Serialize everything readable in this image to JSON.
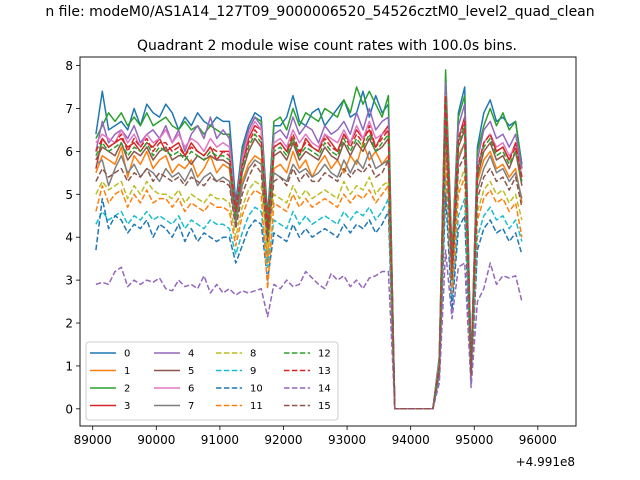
{
  "chart_data": {
    "type": "line",
    "suptitle": "n file: modeM0/AS1A14_127T09_9000006520_54526cztM0_level2_quad_clean",
    "title": "Quadrant 2 module wise count rates with 100.0s bins.",
    "xlabel": "",
    "ylabel": "",
    "x_offset_label": "+4.991e8",
    "xlim": [
      88800,
      96600
    ],
    "ylim": [
      -0.4,
      8.2
    ],
    "xticks": [
      89000,
      90000,
      91000,
      92000,
      93000,
      94000,
      95000,
      96000
    ],
    "xtick_labels": [
      "89000",
      "90000",
      "91000",
      "92000",
      "93000",
      "94000",
      "95000",
      "96000"
    ],
    "yticks": [
      0,
      1,
      2,
      3,
      4,
      5,
      6,
      7,
      8
    ],
    "ytick_labels": [
      "0",
      "1",
      "2",
      "3",
      "4",
      "5",
      "6",
      "7",
      "8"
    ],
    "x_start": 89050,
    "x_step": 100,
    "legend_position": "lower-left",
    "series": [
      {
        "name": "0",
        "color": "#1f77b4",
        "dash": "solid",
        "values": [
          6.4,
          7.4,
          6.5,
          6.6,
          6.7,
          6.5,
          7.0,
          6.6,
          7.1,
          6.9,
          6.8,
          7.1,
          6.9,
          6.5,
          6.8,
          6.6,
          6.9,
          6.7,
          6.6,
          6.8,
          6.7,
          6.7,
          4.8,
          6.1,
          6.6,
          6.9,
          6.8,
          4.5,
          6.6,
          6.6,
          6.8,
          7.3,
          6.7,
          6.6,
          6.9,
          7.0,
          6.6,
          6.8,
          7.0,
          7.2,
          6.8,
          6.9,
          7.4,
          6.8,
          7.3,
          6.9,
          7.1,
          0.0,
          0.0,
          0.0,
          0.0,
          0.0,
          0.0,
          0.0,
          1.2,
          7.7,
          3.5,
          6.9,
          7.5,
          1.0,
          6.1,
          6.9,
          7.2,
          6.7,
          6.8,
          6.6,
          6.7,
          5.7
        ]
      },
      {
        "name": "1",
        "color": "#ff7f0e",
        "dash": "solid",
        "values": [
          5.5,
          5.9,
          5.8,
          5.7,
          6.1,
          5.4,
          5.9,
          5.7,
          6.0,
          5.6,
          5.8,
          5.9,
          5.5,
          5.7,
          5.6,
          5.8,
          5.4,
          5.6,
          5.9,
          5.5,
          5.7,
          5.6,
          4.4,
          5.3,
          5.7,
          5.9,
          5.8,
          3.4,
          5.6,
          5.7,
          5.5,
          6.0,
          5.6,
          5.8,
          5.4,
          5.7,
          5.9,
          5.6,
          5.8,
          5.5,
          5.9,
          5.7,
          6.2,
          5.8,
          6.0,
          5.7,
          5.9,
          0.0,
          0.0,
          0.0,
          0.0,
          0.0,
          0.0,
          0.0,
          1.0,
          6.5,
          3.0,
          5.9,
          6.2,
          0.8,
          5.3,
          5.8,
          6.0,
          5.6,
          5.7,
          5.4,
          5.6,
          4.8
        ]
      },
      {
        "name": "2",
        "color": "#2ca02c",
        "dash": "solid",
        "values": [
          6.3,
          6.6,
          6.9,
          6.7,
          6.9,
          6.6,
          6.8,
          6.6,
          6.9,
          6.6,
          6.7,
          6.8,
          6.6,
          6.5,
          6.7,
          6.5,
          6.6,
          6.4,
          6.6,
          6.5,
          6.4,
          6.4,
          4.6,
          6.0,
          6.5,
          6.8,
          6.7,
          4.4,
          6.7,
          6.8,
          6.5,
          7.0,
          6.6,
          6.9,
          6.8,
          6.7,
          7.0,
          6.9,
          6.8,
          7.2,
          6.9,
          7.5,
          7.1,
          7.4,
          7.1,
          6.8,
          7.3,
          0.0,
          0.0,
          0.0,
          0.0,
          0.0,
          0.0,
          0.0,
          1.2,
          7.9,
          3.6,
          6.8,
          7.3,
          1.0,
          6.0,
          6.6,
          7.0,
          6.6,
          6.9,
          6.5,
          6.7,
          5.6
        ]
      },
      {
        "name": "3",
        "color": "#d62728",
        "dash": "solid",
        "values": [
          5.6,
          6.3,
          6.1,
          6.2,
          6.3,
          6.1,
          6.2,
          6.0,
          6.2,
          6.1,
          6.3,
          6.0,
          6.1,
          6.2,
          5.9,
          6.2,
          6.0,
          5.9,
          6.1,
          5.8,
          6.0,
          6.0,
          4.7,
          5.7,
          6.3,
          6.6,
          6.5,
          4.3,
          6.1,
          6.2,
          6.0,
          6.3,
          5.9,
          6.3,
          6.1,
          6.0,
          6.4,
          6.2,
          6.0,
          6.4,
          6.2,
          6.5,
          6.3,
          6.5,
          6.1,
          6.4,
          6.6,
          0.0,
          0.0,
          0.0,
          0.0,
          0.0,
          0.0,
          0.0,
          1.0,
          7.4,
          3.3,
          6.3,
          6.8,
          0.9,
          5.6,
          6.2,
          6.4,
          6.0,
          6.1,
          5.8,
          6.2,
          5.4
        ]
      },
      {
        "name": "4",
        "color": "#9467bd",
        "dash": "solid",
        "values": [
          6.0,
          6.7,
          6.2,
          6.4,
          6.5,
          6.3,
          6.6,
          6.2,
          6.4,
          6.5,
          6.3,
          6.6,
          6.2,
          6.5,
          6.0,
          6.4,
          6.6,
          6.3,
          6.8,
          6.3,
          6.5,
          6.3,
          4.6,
          5.9,
          6.5,
          6.8,
          6.6,
          4.2,
          6.4,
          6.5,
          6.3,
          6.8,
          6.4,
          6.6,
          6.5,
          6.2,
          6.6,
          6.4,
          6.5,
          6.7,
          6.4,
          6.9,
          6.5,
          7.0,
          6.5,
          6.7,
          6.8,
          0.0,
          0.0,
          0.0,
          0.0,
          0.0,
          0.0,
          0.0,
          1.1,
          7.6,
          3.4,
          6.6,
          7.1,
          1.0,
          5.8,
          6.5,
          6.7,
          6.3,
          6.4,
          6.1,
          6.4,
          5.6
        ]
      },
      {
        "name": "5",
        "color": "#8c564b",
        "dash": "solid",
        "values": [
          5.8,
          6.1,
          6.0,
          5.9,
          6.2,
          5.8,
          6.0,
          5.9,
          6.1,
          5.8,
          6.0,
          6.1,
          5.8,
          5.9,
          5.9,
          5.7,
          5.9,
          5.8,
          5.9,
          5.8,
          5.8,
          5.7,
          4.4,
          5.5,
          6.0,
          6.3,
          6.1,
          4.0,
          5.9,
          6.0,
          5.8,
          6.2,
          5.8,
          6.0,
          5.9,
          5.8,
          6.1,
          5.9,
          5.8,
          6.2,
          5.9,
          6.2,
          6.0,
          6.3,
          6.0,
          6.1,
          6.3,
          0.0,
          0.0,
          0.0,
          0.0,
          0.0,
          0.0,
          0.0,
          1.0,
          7.1,
          3.2,
          6.1,
          6.5,
          0.9,
          5.4,
          6.0,
          6.2,
          5.8,
          5.9,
          5.6,
          6.0,
          5.2
        ]
      },
      {
        "name": "6",
        "color": "#e377c2",
        "dash": "solid",
        "values": [
          6.2,
          6.4,
          6.3,
          6.2,
          6.5,
          6.2,
          6.4,
          6.1,
          6.4,
          6.2,
          6.3,
          6.5,
          6.2,
          6.4,
          6.1,
          6.3,
          6.2,
          6.0,
          6.3,
          6.1,
          6.2,
          6.1,
          4.5,
          5.8,
          6.4,
          6.7,
          6.5,
          4.1,
          6.2,
          6.3,
          6.1,
          6.5,
          6.2,
          6.4,
          6.2,
          6.1,
          6.4,
          6.3,
          6.2,
          6.5,
          6.2,
          6.6,
          6.3,
          6.7,
          6.3,
          6.4,
          6.5,
          0.0,
          0.0,
          0.0,
          0.0,
          0.0,
          0.0,
          0.0,
          1.1,
          7.3,
          3.3,
          6.3,
          6.7,
          0.9,
          5.6,
          6.2,
          6.4,
          6.1,
          6.2,
          5.9,
          6.1,
          5.4
        ]
      },
      {
        "name": "7",
        "color": "#7f7f7f",
        "dash": "solid",
        "values": [
          5.7,
          5.8,
          5.2,
          5.6,
          5.9,
          5.5,
          5.7,
          5.4,
          5.6,
          5.5,
          5.3,
          5.6,
          5.4,
          5.5,
          5.3,
          5.6,
          5.2,
          5.4,
          5.5,
          5.3,
          5.4,
          5.3,
          4.3,
          5.2,
          5.6,
          5.8,
          5.7,
          4.3,
          5.5,
          5.4,
          5.3,
          5.7,
          5.5,
          5.6,
          5.4,
          5.5,
          5.7,
          5.5,
          5.4,
          5.8,
          5.5,
          5.8,
          5.6,
          6.0,
          5.6,
          5.7,
          5.8,
          0.0,
          0.0,
          0.0,
          0.0,
          0.0,
          0.0,
          0.0,
          1.0,
          6.8,
          3.1,
          5.8,
          6.2,
          0.8,
          5.1,
          5.6,
          5.9,
          5.5,
          5.6,
          5.3,
          5.5,
          4.9
        ]
      },
      {
        "name": "8",
        "color": "#bcbd22",
        "dash": "dashed",
        "values": [
          5.0,
          5.3,
          5.1,
          5.2,
          5.3,
          4.9,
          5.2,
          5.0,
          5.3,
          5.1,
          5.0,
          5.0,
          4.9,
          5.1,
          4.8,
          5.0,
          4.9,
          4.8,
          5.0,
          4.9,
          4.9,
          4.8,
          4.0,
          4.7,
          5.1,
          5.3,
          5.2,
          3.7,
          5.0,
          4.9,
          4.8,
          5.2,
          4.9,
          5.1,
          4.9,
          5.0,
          5.1,
          5.0,
          4.9,
          5.3,
          5.0,
          5.2,
          5.1,
          5.4,
          5.0,
          5.2,
          5.3,
          0.0,
          0.0,
          0.0,
          0.0,
          0.0,
          0.0,
          0.0,
          0.9,
          6.1,
          2.8,
          5.2,
          5.6,
          0.7,
          4.6,
          5.1,
          5.3,
          5.0,
          5.1,
          4.8,
          5.0,
          4.4
        ]
      },
      {
        "name": "9",
        "color": "#17becf",
        "dash": "dashed",
        "values": [
          4.3,
          4.6,
          4.4,
          4.5,
          4.6,
          4.3,
          4.5,
          4.4,
          4.6,
          4.4,
          4.5,
          4.4,
          4.3,
          4.5,
          4.2,
          4.4,
          4.3,
          4.2,
          4.4,
          4.3,
          4.3,
          4.2,
          3.6,
          4.1,
          4.5,
          4.7,
          4.6,
          3.3,
          4.4,
          4.3,
          4.2,
          4.6,
          4.3,
          4.5,
          4.3,
          4.4,
          4.5,
          4.4,
          4.3,
          4.6,
          4.4,
          4.6,
          4.5,
          4.7,
          4.4,
          4.6,
          4.9,
          0.0,
          0.0,
          0.0,
          0.0,
          0.0,
          0.0,
          0.0,
          0.8,
          5.4,
          2.5,
          4.5,
          4.9,
          0.6,
          4.0,
          4.5,
          4.7,
          4.4,
          4.5,
          4.2,
          4.4,
          3.9
        ]
      },
      {
        "name": "10",
        "color": "#1f77b4",
        "dash": "dashed",
        "values": [
          3.7,
          4.9,
          4.2,
          4.5,
          4.4,
          4.1,
          4.3,
          4.2,
          4.4,
          4.0,
          4.3,
          4.2,
          4.0,
          4.3,
          3.9,
          4.2,
          3.9,
          4.1,
          4.0,
          3.9,
          4.0,
          4.0,
          3.4,
          3.8,
          4.2,
          4.4,
          4.3,
          3.0,
          4.1,
          4.0,
          3.9,
          4.3,
          4.0,
          4.2,
          4.0,
          4.1,
          4.2,
          4.1,
          4.0,
          4.3,
          4.1,
          4.3,
          4.2,
          4.4,
          4.1,
          4.3,
          4.6,
          0.0,
          0.0,
          0.0,
          0.0,
          0.0,
          0.0,
          0.0,
          0.8,
          5.0,
          2.3,
          4.2,
          4.5,
          0.6,
          3.7,
          4.2,
          4.4,
          4.1,
          4.2,
          3.9,
          4.1,
          3.6
        ]
      },
      {
        "name": "11",
        "color": "#ff7f0e",
        "dash": "dashed",
        "values": [
          4.6,
          5.2,
          4.8,
          5.0,
          5.1,
          4.7,
          5.0,
          4.8,
          5.1,
          4.8,
          4.9,
          4.9,
          4.7,
          4.9,
          4.6,
          4.8,
          4.7,
          4.6,
          4.8,
          4.7,
          4.7,
          4.6,
          3.8,
          4.5,
          4.9,
          5.1,
          5.0,
          2.8,
          4.8,
          4.7,
          4.6,
          5.0,
          4.7,
          4.9,
          4.7,
          4.8,
          4.9,
          4.8,
          4.7,
          5.0,
          4.8,
          5.0,
          4.9,
          5.1,
          4.8,
          5.0,
          5.2,
          0.0,
          0.0,
          0.0,
          0.0,
          0.0,
          0.0,
          0.0,
          0.9,
          5.9,
          2.7,
          5.0,
          5.4,
          0.7,
          4.4,
          4.9,
          5.1,
          4.8,
          4.9,
          4.6,
          4.8,
          4.0
        ]
      },
      {
        "name": "12",
        "color": "#2ca02c",
        "dash": "dashed",
        "values": [
          5.9,
          6.2,
          6.0,
          6.1,
          6.2,
          5.9,
          6.1,
          6.0,
          6.2,
          5.9,
          6.1,
          6.0,
          5.9,
          6.0,
          5.8,
          6.0,
          5.9,
          5.8,
          6.0,
          5.9,
          5.9,
          5.8,
          4.5,
          5.6,
          6.1,
          6.4,
          6.2,
          4.1,
          6.0,
          6.1,
          5.9,
          6.3,
          5.9,
          6.1,
          6.0,
          5.9,
          6.2,
          6.0,
          5.9,
          6.3,
          6.0,
          6.3,
          6.1,
          6.4,
          6.0,
          6.2,
          6.4,
          0.0,
          0.0,
          0.0,
          0.0,
          0.0,
          0.0,
          0.0,
          1.0,
          7.2,
          3.3,
          6.2,
          6.6,
          0.9,
          5.5,
          6.1,
          6.3,
          5.9,
          6.0,
          5.7,
          6.0,
          5.3
        ]
      },
      {
        "name": "13",
        "color": "#d62728",
        "dash": "dashed",
        "values": [
          6.0,
          6.3,
          6.1,
          6.2,
          6.4,
          6.0,
          6.3,
          6.1,
          6.3,
          6.0,
          6.2,
          6.2,
          6.0,
          6.1,
          5.9,
          6.1,
          6.0,
          5.9,
          6.1,
          6.0,
          6.0,
          5.9,
          4.6,
          5.7,
          6.2,
          6.5,
          6.3,
          4.2,
          6.1,
          6.2,
          6.0,
          6.4,
          6.0,
          6.2,
          6.1,
          6.0,
          6.3,
          6.1,
          6.0,
          6.4,
          6.1,
          6.4,
          6.2,
          6.6,
          6.1,
          6.3,
          6.5,
          0.0,
          0.0,
          0.0,
          0.0,
          0.0,
          0.0,
          0.0,
          1.0,
          7.3,
          3.3,
          6.3,
          6.7,
          0.9,
          5.6,
          6.2,
          6.4,
          6.0,
          6.1,
          5.8,
          6.1,
          5.4
        ]
      },
      {
        "name": "14",
        "color": "#9467bd",
        "dash": "dashed",
        "values": [
          2.9,
          2.95,
          2.9,
          3.2,
          3.3,
          2.85,
          3.0,
          2.9,
          3.0,
          2.95,
          3.05,
          2.8,
          2.75,
          3.0,
          2.85,
          2.9,
          2.8,
          3.1,
          2.7,
          2.9,
          2.7,
          2.8,
          2.65,
          2.75,
          2.7,
          2.75,
          2.8,
          2.15,
          2.9,
          2.8,
          3.0,
          2.85,
          2.9,
          3.2,
          3.05,
          2.9,
          2.8,
          3.15,
          3.0,
          3.1,
          2.85,
          3.0,
          2.8,
          3.05,
          3.1,
          3.2,
          3.2,
          0.0,
          0.0,
          0.0,
          0.0,
          0.0,
          0.0,
          0.0,
          0.6,
          3.7,
          2.1,
          3.3,
          3.4,
          0.5,
          2.5,
          2.8,
          3.4,
          2.9,
          3.1,
          3.05,
          3.1,
          2.5
        ]
      },
      {
        "name": "15",
        "color": "#8c564b",
        "dash": "dashed",
        "values": [
          5.3,
          5.6,
          5.4,
          5.5,
          5.6,
          5.3,
          5.5,
          5.4,
          5.6,
          5.3,
          5.5,
          5.4,
          5.3,
          5.4,
          5.2,
          5.4,
          5.3,
          5.2,
          5.4,
          5.3,
          5.3,
          5.2,
          4.2,
          5.0,
          5.4,
          5.7,
          5.5,
          3.9,
          5.3,
          5.4,
          5.2,
          5.6,
          5.3,
          5.5,
          5.3,
          5.3,
          5.5,
          5.4,
          5.3,
          5.6,
          5.4,
          5.6,
          5.5,
          5.7,
          5.4,
          5.5,
          5.8,
          0.0,
          0.0,
          0.0,
          0.0,
          0.0,
          0.0,
          0.0,
          0.9,
          6.5,
          3.0,
          5.6,
          5.9,
          0.8,
          4.9,
          5.4,
          5.6,
          5.3,
          5.4,
          5.1,
          5.4,
          4.7
        ]
      }
    ]
  }
}
